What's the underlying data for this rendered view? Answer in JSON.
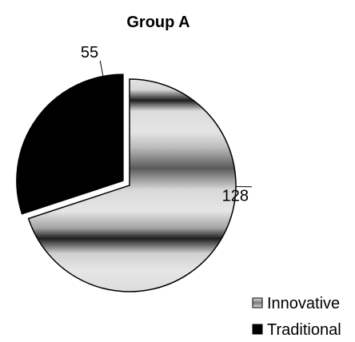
{
  "chart_data": {
    "type": "pie",
    "title": "Group A",
    "categories": [
      "Innovative",
      "Traditional"
    ],
    "values": [
      128,
      55
    ],
    "data_labels": [
      "128",
      "55"
    ],
    "exploded": [
      false,
      true
    ],
    "start_angle_deg": 0,
    "fills": {
      "Innovative": "banded-gray-gradient",
      "Traditional": "#000000"
    },
    "legend": {
      "position": "bottom-right",
      "entries": [
        "Innovative",
        "Traditional"
      ]
    }
  }
}
